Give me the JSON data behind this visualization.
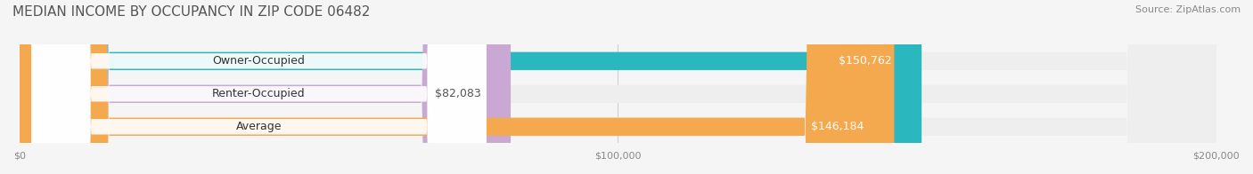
{
  "title": "MEDIAN INCOME BY OCCUPANCY IN ZIP CODE 06482",
  "source": "Source: ZipAtlas.com",
  "categories": [
    "Owner-Occupied",
    "Renter-Occupied",
    "Average"
  ],
  "values": [
    150762,
    82083,
    146184
  ],
  "bar_colors": [
    "#2ab8be",
    "#c9a8d4",
    "#f5a94e"
  ],
  "label_colors": [
    "#ffffff",
    "#555555",
    "#ffffff"
  ],
  "value_labels": [
    "$150,762",
    "$82,083",
    "$146,184"
  ],
  "xlim": [
    0,
    200000
  ],
  "xtick_values": [
    0,
    100000,
    200000
  ],
  "xtick_labels": [
    "$0",
    "$100,000",
    "$200,000"
  ],
  "background_color": "#f5f5f5",
  "bar_bg_color": "#eeeeee",
  "title_fontsize": 11,
  "bar_height": 0.55,
  "bar_label_fontsize": 9,
  "value_label_fontsize": 9,
  "axis_label_fontsize": 8,
  "source_fontsize": 8
}
